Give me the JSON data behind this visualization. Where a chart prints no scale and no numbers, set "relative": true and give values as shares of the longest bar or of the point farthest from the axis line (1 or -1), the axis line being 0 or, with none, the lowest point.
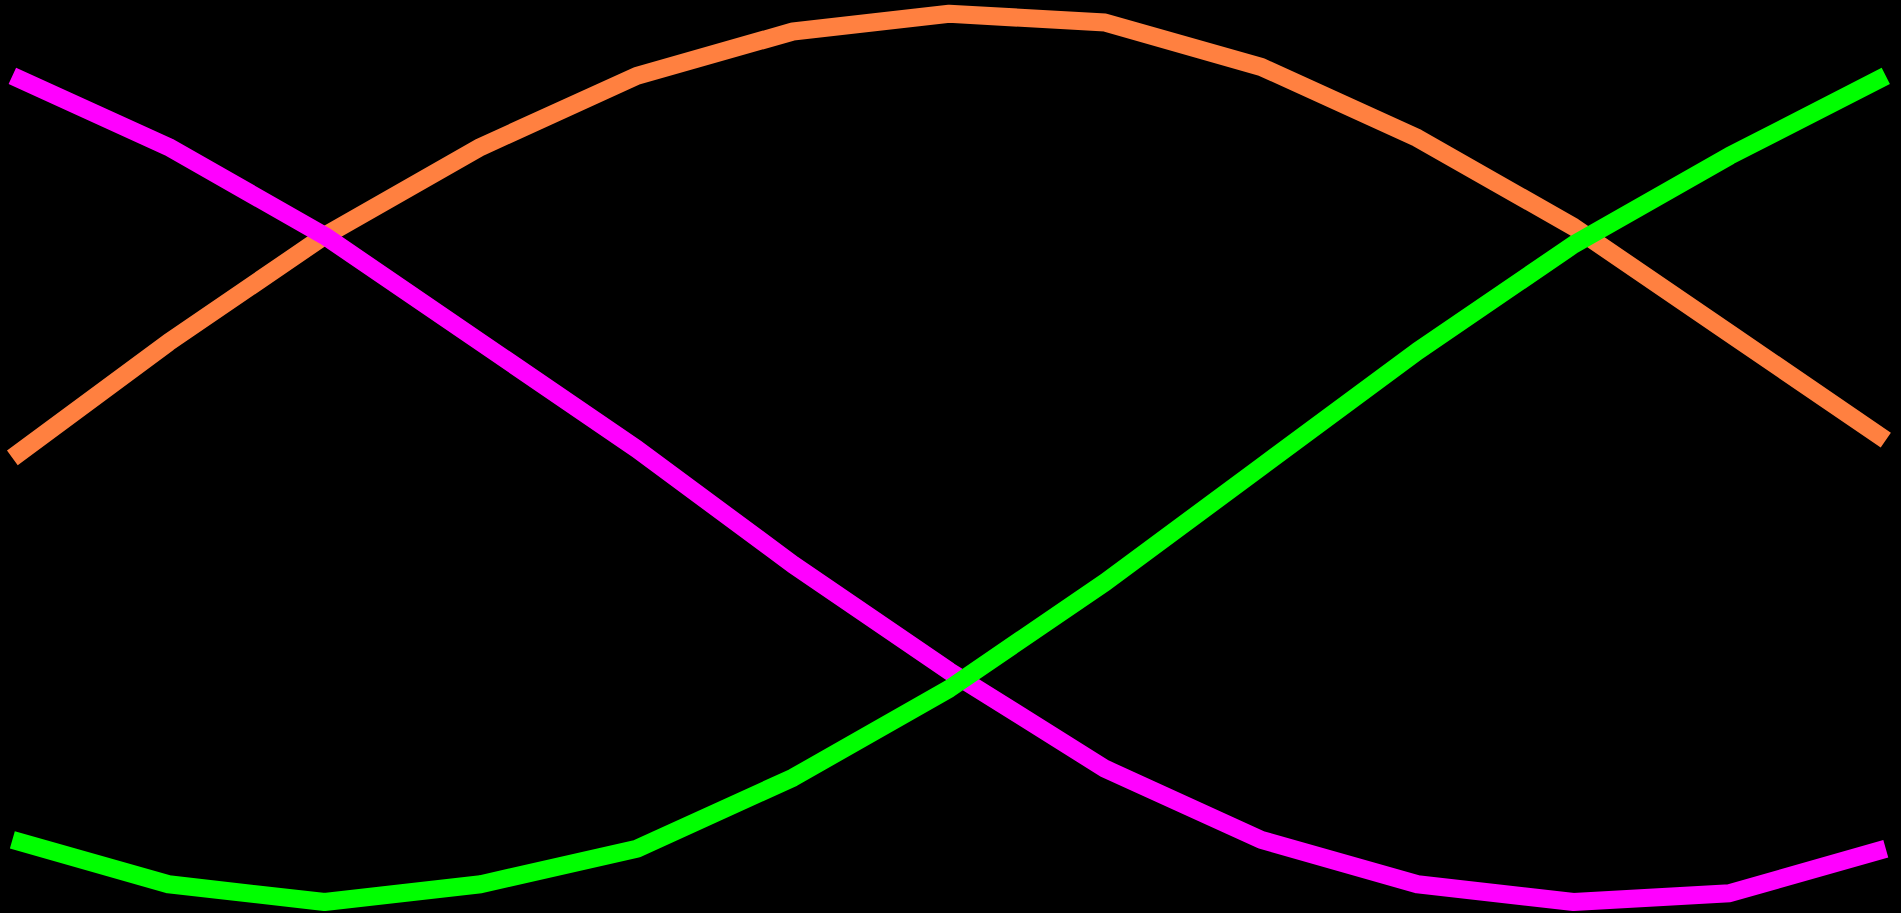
{
  "chart_data": {
    "type": "line",
    "relative": true,
    "marker": "none",
    "line_style": "solid",
    "categories": [
      null,
      null,
      null,
      null,
      null,
      null,
      null,
      null,
      null,
      null,
      null,
      null,
      null
    ],
    "series": [
      {
        "color": "#ff8040",
        "values": [
          0.5,
          0.63,
          0.75,
          0.85,
          0.93,
          0.98,
          1.0,
          0.99,
          0.94,
          0.86,
          0.76,
          0.64,
          0.52
        ]
      },
      {
        "color": "#ff00ff",
        "values": [
          0.93,
          0.85,
          0.75,
          0.63,
          0.51,
          0.38,
          0.26,
          0.15,
          0.07,
          0.02,
          0.0,
          0.01,
          0.06
        ]
      },
      {
        "color": "#00ff00",
        "values": [
          0.07,
          0.02,
          0.0,
          0.02,
          0.06,
          0.14,
          0.24,
          0.36,
          0.49,
          0.62,
          0.74,
          0.84,
          0.93
        ]
      }
    ]
  }
}
